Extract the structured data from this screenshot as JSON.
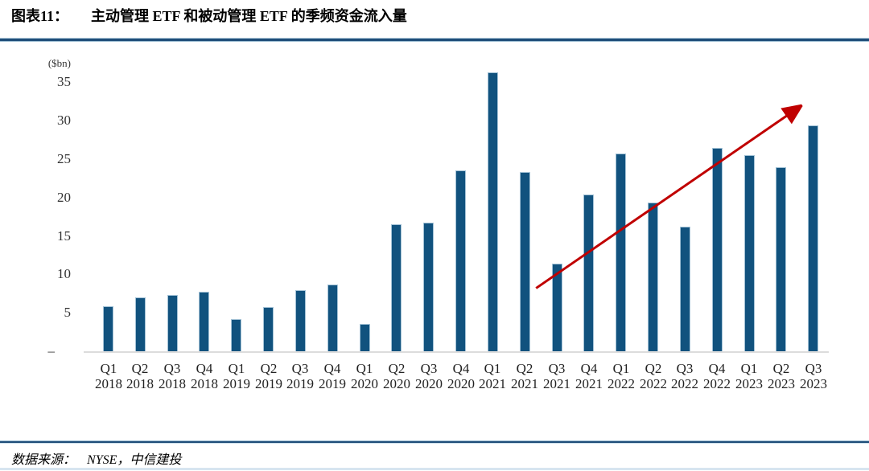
{
  "header": {
    "label": "图表11：",
    "title": "主动管理 ETF 和被动管理 ETF 的季频资金流入量"
  },
  "footer": {
    "source_label": "数据来源：",
    "source_text": "NYSE，中信建投"
  },
  "chart_data": {
    "type": "bar",
    "title": "主动管理 ETF 和被动管理 ETF 的季频资金流入量",
    "unit_label": "($bn)",
    "xlabel": "",
    "ylabel": "($bn)",
    "ylim": [
      0,
      36.8
    ],
    "grid": false,
    "legend": "none",
    "categories": [
      {
        "quarter": "Q1",
        "year": "2018"
      },
      {
        "quarter": "Q2",
        "year": "2018"
      },
      {
        "quarter": "Q3",
        "year": "2018"
      },
      {
        "quarter": "Q4",
        "year": "2018"
      },
      {
        "quarter": "Q1",
        "year": "2019"
      },
      {
        "quarter": "Q2",
        "year": "2019"
      },
      {
        "quarter": "Q3",
        "year": "2019"
      },
      {
        "quarter": "Q4",
        "year": "2019"
      },
      {
        "quarter": "Q1",
        "year": "2020"
      },
      {
        "quarter": "Q2",
        "year": "2020"
      },
      {
        "quarter": "Q3",
        "year": "2020"
      },
      {
        "quarter": "Q4",
        "year": "2020"
      },
      {
        "quarter": "Q1",
        "year": "2021"
      },
      {
        "quarter": "Q2",
        "year": "2021"
      },
      {
        "quarter": "Q3",
        "year": "2021"
      },
      {
        "quarter": "Q4",
        "year": "2021"
      },
      {
        "quarter": "Q1",
        "year": "2022"
      },
      {
        "quarter": "Q2",
        "year": "2022"
      },
      {
        "quarter": "Q3",
        "year": "2022"
      },
      {
        "quarter": "Q4",
        "year": "2022"
      },
      {
        "quarter": "Q1",
        "year": "2023"
      },
      {
        "quarter": "Q2",
        "year": "2023"
      },
      {
        "quarter": "Q3",
        "year": "2023"
      }
    ],
    "values": [
      5.9,
      7.0,
      7.3,
      7.7,
      4.2,
      5.7,
      7.9,
      8.7,
      3.6,
      16.5,
      16.7,
      23.5,
      36.3,
      23.3,
      11.4,
      20.4,
      25.7,
      19.3,
      16.2,
      26.4,
      25.5,
      23.9,
      29.4
    ],
    "yticks": [
      {
        "label": "35",
        "value": 35
      },
      {
        "label": "30",
        "value": 30
      },
      {
        "label": "25",
        "value": 25
      },
      {
        "label": "20",
        "value": 20
      },
      {
        "label": "15",
        "value": 15
      },
      {
        "label": "10",
        "value": 10
      },
      {
        "label": "5",
        "value": 5
      },
      {
        "label": "–",
        "value": 0
      }
    ],
    "bar_color": "#11527E",
    "bar_border_color": "#A3C2D6",
    "axis_color": "#DCDCDC",
    "annotation_arrow": {
      "color": "#C00000",
      "from": {
        "index": 13.35,
        "value": 8.2
      },
      "to": {
        "index": 21.65,
        "value": 32.0
      }
    }
  }
}
